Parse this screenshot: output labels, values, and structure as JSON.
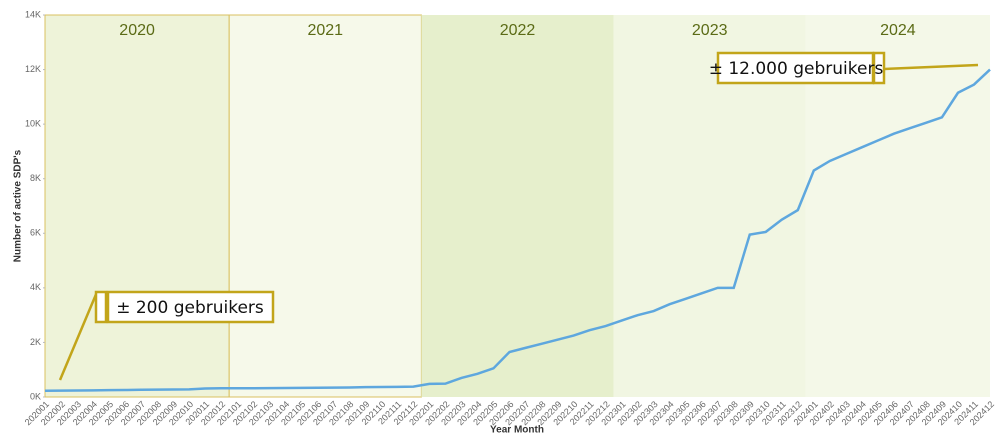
{
  "chart_data": {
    "type": "line",
    "y_label": "Number of active SDP's",
    "x_label": "Year Month",
    "categories": [
      "202001",
      "202002",
      "202003",
      "202004",
      "202005",
      "202006",
      "202007",
      "202008",
      "202009",
      "202010",
      "202011",
      "202012",
      "202101",
      "202102",
      "202103",
      "202104",
      "202105",
      "202106",
      "202107",
      "202108",
      "202109",
      "202110",
      "202111",
      "202112",
      "202201",
      "202202",
      "202203",
      "202204",
      "202205",
      "202206",
      "202207",
      "202208",
      "202209",
      "202210",
      "202211",
      "202212",
      "202301",
      "202302",
      "202303",
      "202304",
      "202305",
      "202306",
      "202307",
      "202308",
      "202309",
      "202310",
      "202311",
      "202312",
      "202401",
      "202402",
      "202403",
      "202404",
      "202405",
      "202406",
      "202407",
      "202408",
      "202409",
      "202410",
      "202411",
      "202412"
    ],
    "series": [
      {
        "name": "Active SDP's",
        "color": "#5ea7de",
        "values": [
          230,
          235,
          240,
          245,
          250,
          255,
          265,
          270,
          275,
          280,
          310,
          320,
          320,
          320,
          325,
          330,
          335,
          340,
          345,
          350,
          360,
          365,
          370,
          380,
          480,
          490,
          700,
          850,
          1050,
          1650,
          1800,
          1950,
          2100,
          2250,
          2450,
          2600,
          2800,
          3000,
          3150,
          3400,
          3600,
          3800,
          4000,
          4000,
          5950,
          6050,
          6500,
          6850,
          8300,
          8650,
          8900,
          9150,
          9400,
          9650,
          9850,
          10050,
          10250,
          11150,
          11450,
          12000
        ]
      }
    ],
    "ylim": [
      0,
      14000
    ],
    "yticks": [
      {
        "value": 0,
        "label": "0K"
      },
      {
        "value": 2000,
        "label": "2K"
      },
      {
        "value": 4000,
        "label": "4K"
      },
      {
        "value": 6000,
        "label": "6K"
      },
      {
        "value": 8000,
        "label": "8K"
      },
      {
        "value": 10000,
        "label": "10K"
      },
      {
        "value": 12000,
        "label": "12K"
      },
      {
        "value": 14000,
        "label": "14K"
      }
    ],
    "year_labels": [
      "2020",
      "2021",
      "2022",
      "2023",
      "2024"
    ],
    "annotations": [
      "± 200 gebruikers",
      "± 12.000 gebruikers"
    ]
  }
}
